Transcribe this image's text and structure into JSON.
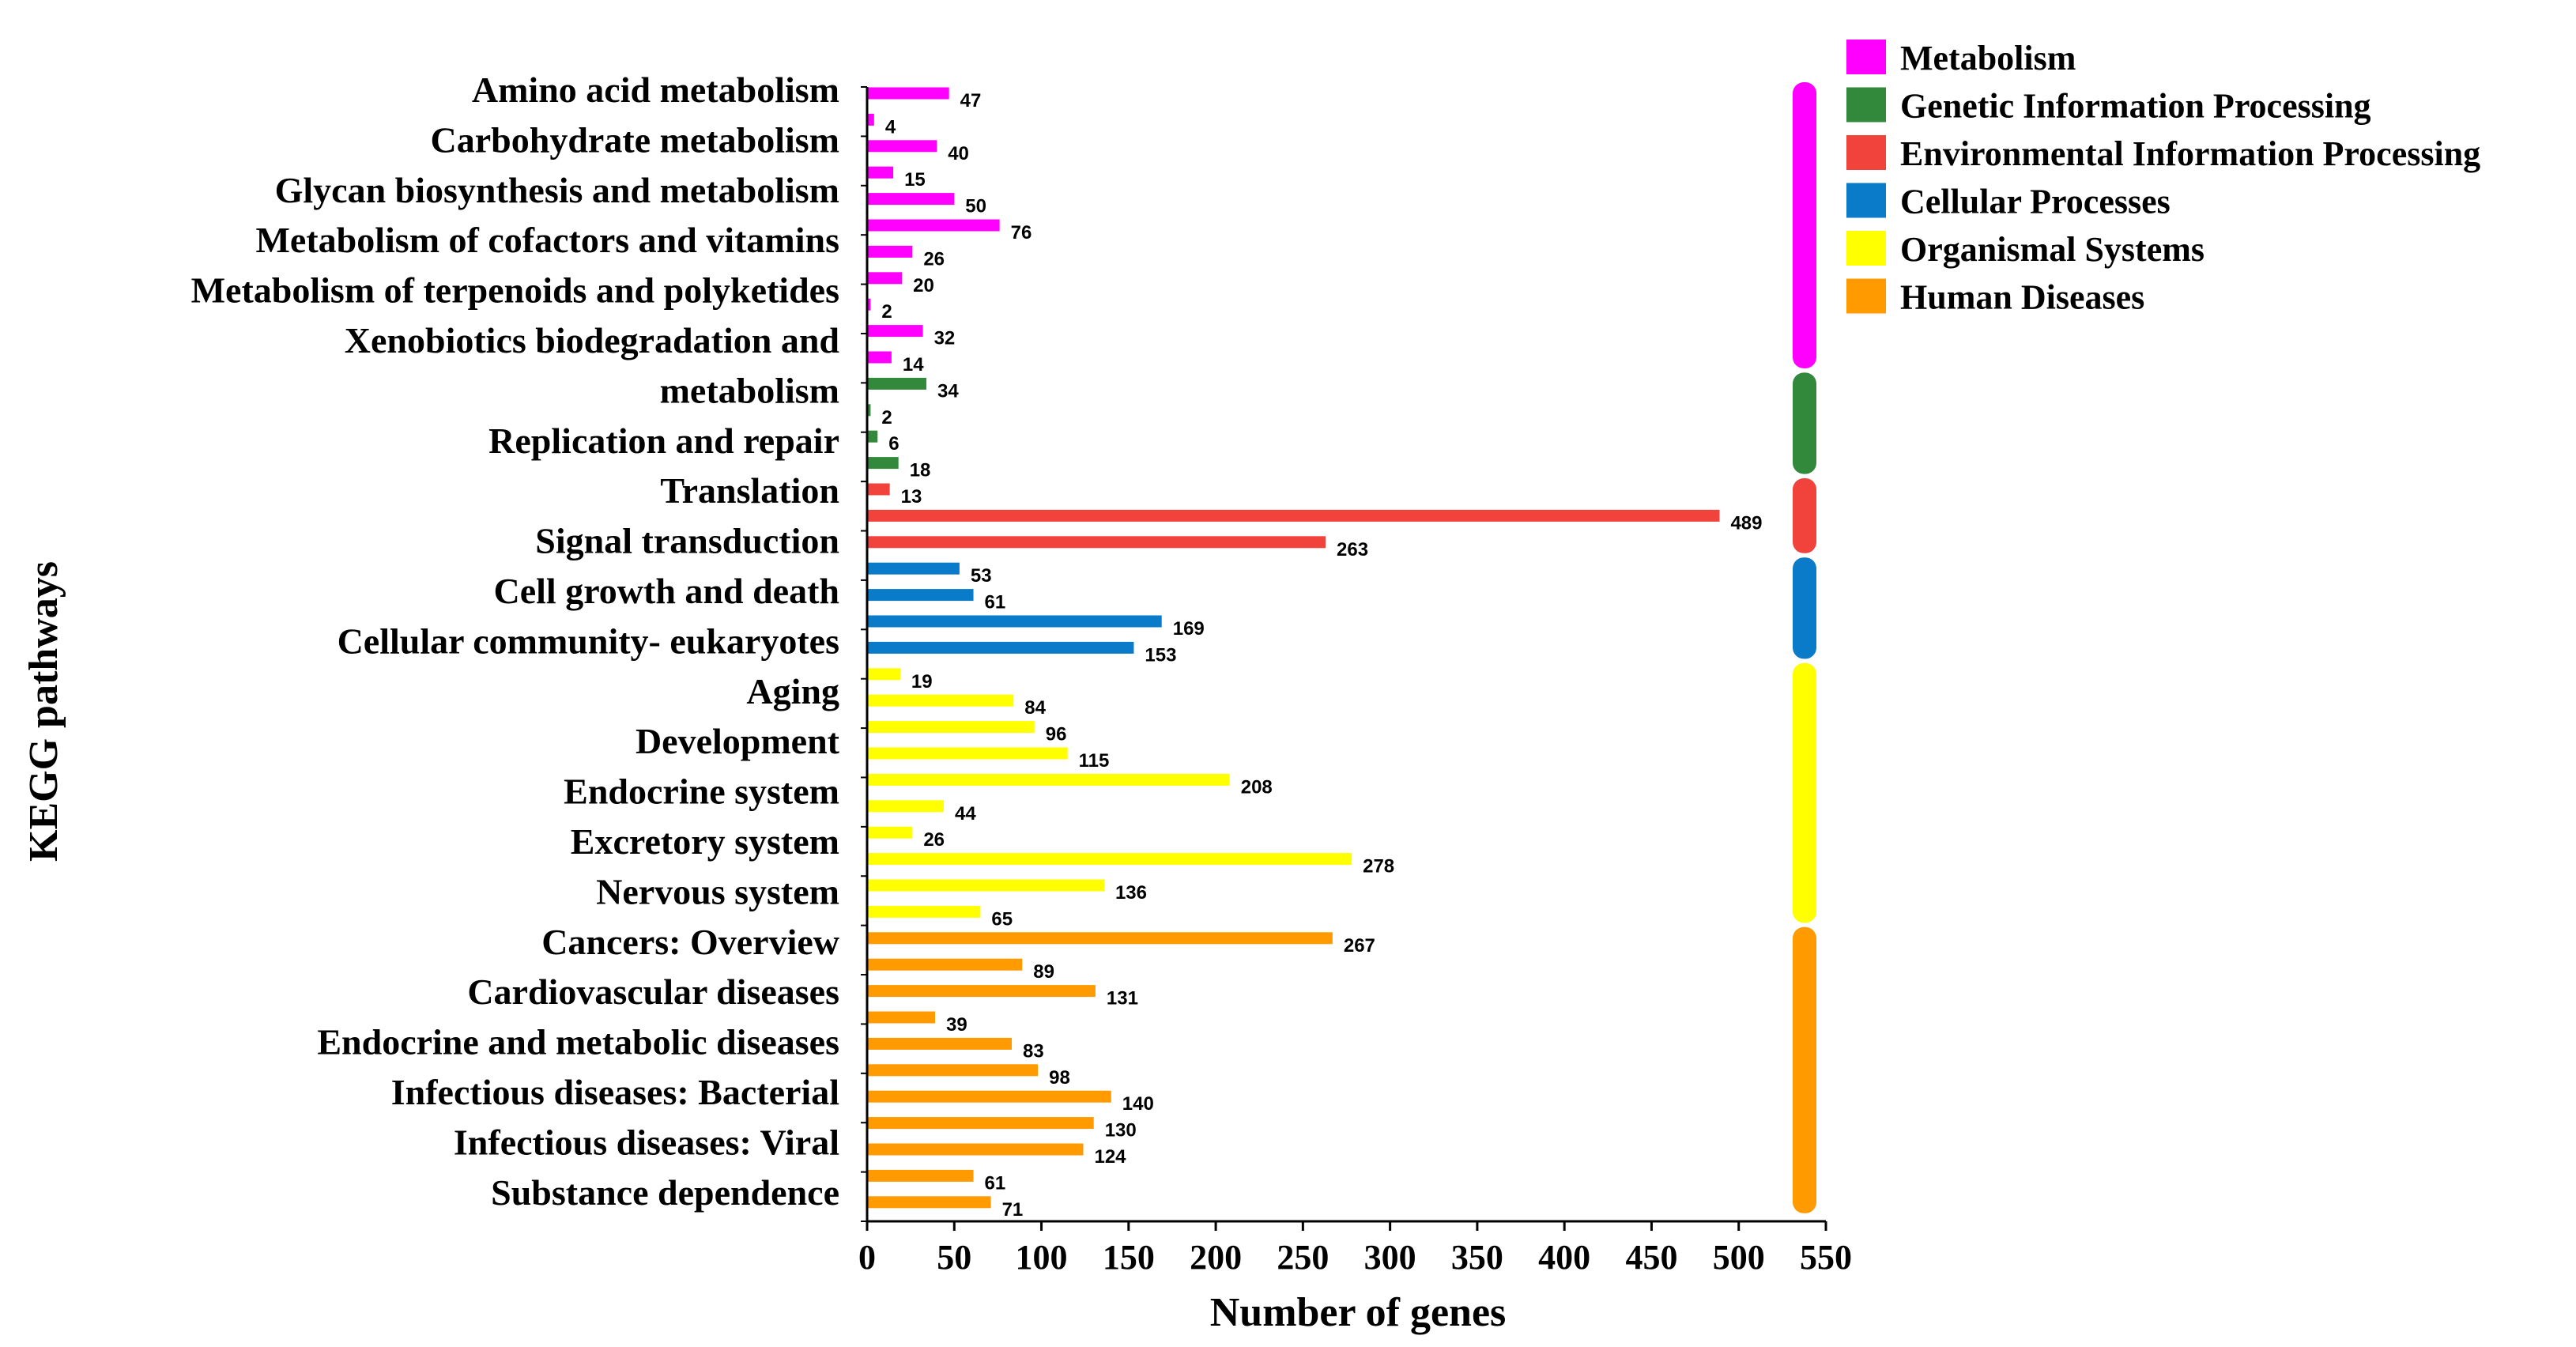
{
  "chart_data": {
    "type": "bar",
    "orientation": "horizontal",
    "xlabel": "Number of genes",
    "ylabel": "KEGG pathways",
    "xlim": [
      0,
      550
    ],
    "xticks": [
      0,
      50,
      100,
      150,
      200,
      250,
      300,
      350,
      400,
      450,
      500,
      550
    ],
    "category_labels": [
      "Amino acid metabolism",
      "Carbohydrate metabolism",
      "Glycan biosynthesis and metabolism",
      "Metabolism of cofactors and vitamins",
      "Metabolism of terpenoids and polyketides",
      "Xenobiotics biodegradation and",
      "metabolism",
      "Replication and repair",
      "Translation",
      "Signal transduction",
      "Cell growth and death",
      "Cellular community- eukaryotes",
      "Aging",
      "Development",
      "Endocrine system",
      "Excretory system",
      "Nervous system",
      "Cancers: Overview",
      "Cardiovascular diseases",
      "Endocrine and metabolic diseases",
      "Infectious diseases: Bacterial",
      "Infectious diseases: Viral",
      "Substance dependence"
    ],
    "groups": [
      {
        "name": "Metabolism",
        "color": "#ff00ff",
        "values": [
          47,
          4,
          40,
          15,
          50,
          76,
          26,
          20,
          2,
          32,
          14
        ]
      },
      {
        "name": "Genetic Information Processing",
        "color": "#33893b",
        "values": [
          34,
          2,
          6,
          18
        ]
      },
      {
        "name": "Environmental Information Processing",
        "color": "#f2423c",
        "values": [
          13,
          489,
          263
        ]
      },
      {
        "name": "Cellular Processes",
        "color": "#0a7bc8",
        "values": [
          53,
          61,
          169,
          153
        ]
      },
      {
        "name": "Organismal Systems",
        "color": "#ffff00",
        "values": [
          19,
          84,
          96,
          115,
          208,
          44,
          26,
          278,
          136,
          65
        ]
      },
      {
        "name": "Human Diseases",
        "color": "#ff9a00",
        "values": [
          267,
          89,
          131,
          39,
          83,
          98,
          140,
          130,
          124,
          61,
          71
        ]
      }
    ],
    "legend": {
      "position": "top-right",
      "entries": [
        {
          "label": "Metabolism",
          "color": "#ff00ff"
        },
        {
          "label": "Genetic Information Processing",
          "color": "#33893b"
        },
        {
          "label": "Environmental Information Processing",
          "color": "#f2423c"
        },
        {
          "label": "Cellular Processes",
          "color": "#0a7bc8"
        },
        {
          "label": "Organismal Systems",
          "color": "#ffff00"
        },
        {
          "label": "Human Diseases",
          "color": "#ff9a00"
        }
      ]
    }
  }
}
